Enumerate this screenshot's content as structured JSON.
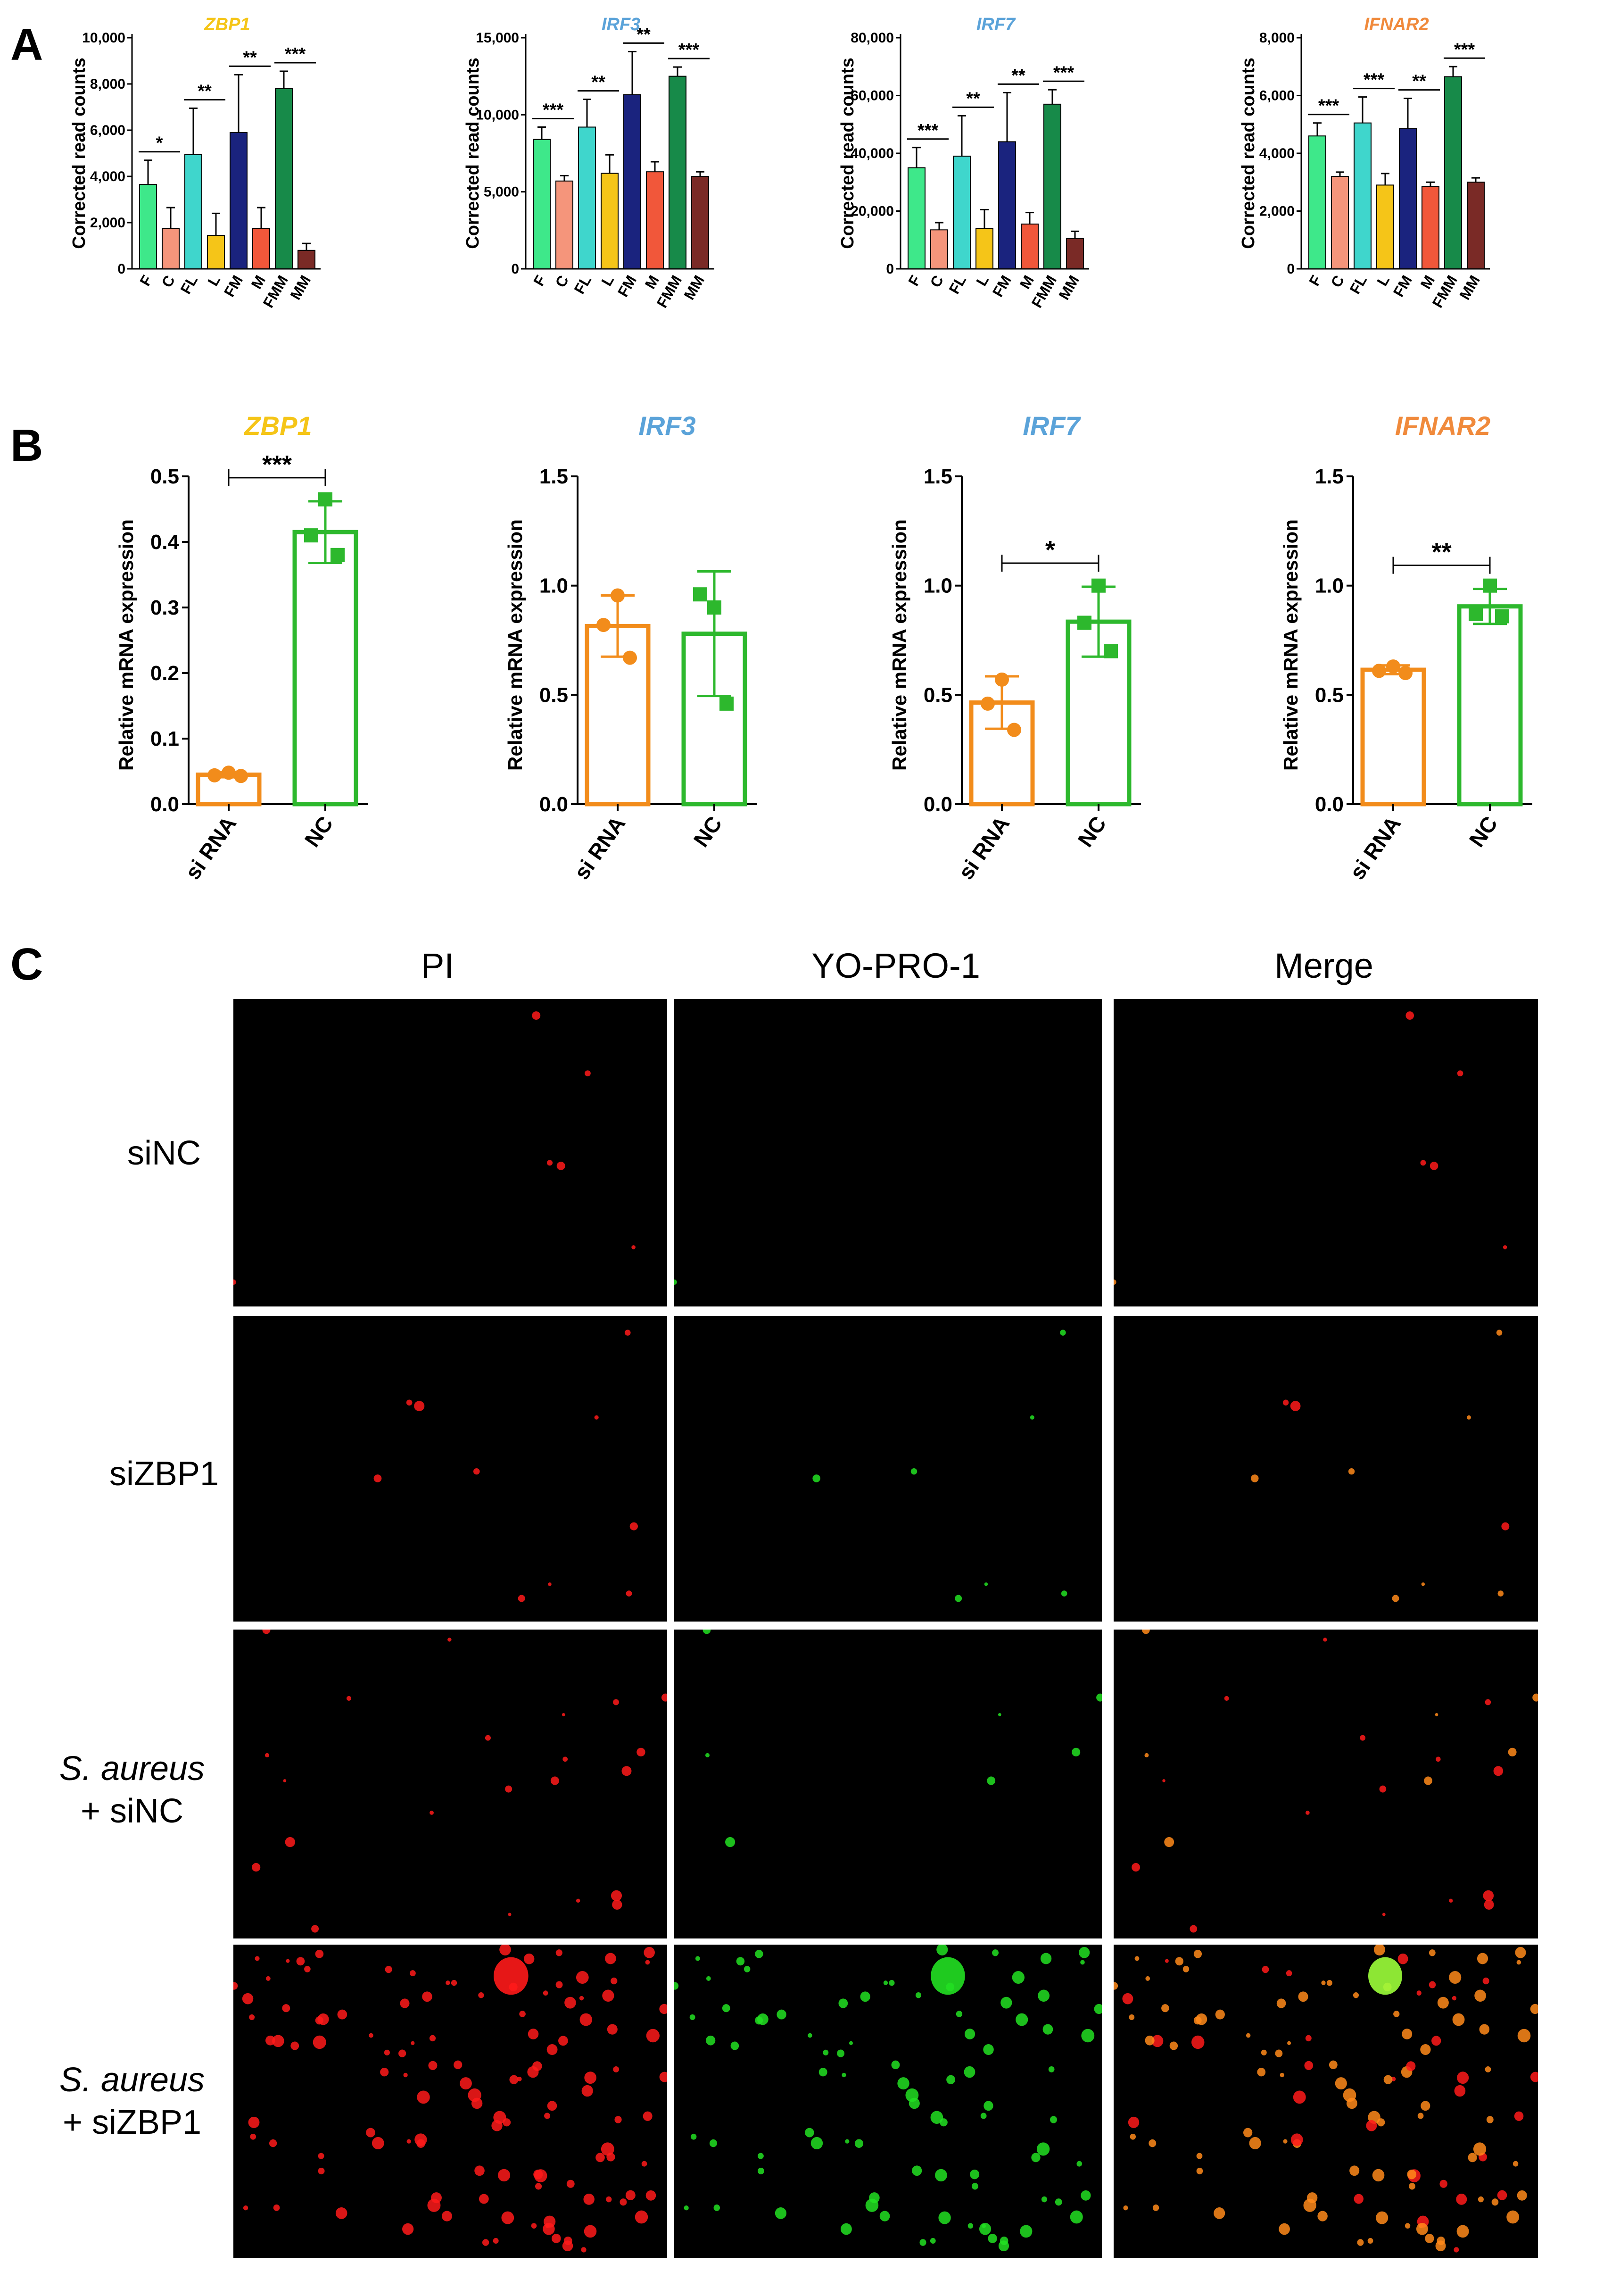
{
  "panel_letters": [
    "A",
    "B",
    "C"
  ],
  "chart_data": [
    {
      "id": "A1",
      "type": "bar",
      "title": "ZBP1",
      "title_color": "#f5c518",
      "ylabel": "Corrected read counts",
      "ylim": [
        0,
        10000
      ],
      "yticks": [
        0,
        2000,
        4000,
        6000,
        8000,
        10000
      ],
      "ytick_labels": [
        "0",
        "2,000",
        "4,000",
        "6,000",
        "8,000",
        "10,000"
      ],
      "categories": [
        "F",
        "C",
        "FL",
        "L",
        "FM",
        "M",
        "FMM",
        "MM"
      ],
      "colors": [
        "#3ee88a",
        "#f5957b",
        "#3fd6cc",
        "#f5c518",
        "#1a237e",
        "#f1573a",
        "#178a49",
        "#7a2a26"
      ],
      "values": [
        3650,
        1750,
        4950,
        1450,
        5900,
        1750,
        7800,
        800
      ],
      "errors": [
        1050,
        900,
        2000,
        950,
        2500,
        900,
        750,
        300
      ],
      "significance": [
        {
          "pair": [
            0,
            1
          ],
          "label": "*"
        },
        {
          "pair": [
            2,
            3
          ],
          "label": "**"
        },
        {
          "pair": [
            4,
            5
          ],
          "label": "**"
        },
        {
          "pair": [
            6,
            7
          ],
          "label": "***"
        }
      ]
    },
    {
      "id": "A2",
      "type": "bar",
      "title": "IRF3",
      "title_color": "#5ba3d9",
      "ylabel": "Corrected read counts",
      "ylim": [
        0,
        15000
      ],
      "yticks": [
        0,
        5000,
        10000,
        15000
      ],
      "ytick_labels": [
        "0",
        "5,000",
        "10,000",
        "15,000"
      ],
      "categories": [
        "F",
        "C",
        "FL",
        "L",
        "FM",
        "M",
        "FMM",
        "MM"
      ],
      "colors": [
        "#3ee88a",
        "#f5957b",
        "#3fd6cc",
        "#f5c518",
        "#1a237e",
        "#f1573a",
        "#178a49",
        "#7a2a26"
      ],
      "values": [
        8400,
        5700,
        9200,
        6200,
        11300,
        6300,
        12500,
        6000
      ],
      "errors": [
        800,
        350,
        1800,
        1200,
        2800,
        650,
        600,
        300
      ],
      "significance": [
        {
          "pair": [
            0,
            1
          ],
          "label": "***"
        },
        {
          "pair": [
            2,
            3
          ],
          "label": "**"
        },
        {
          "pair": [
            4,
            5
          ],
          "label": "**"
        },
        {
          "pair": [
            6,
            7
          ],
          "label": "***"
        }
      ]
    },
    {
      "id": "A3",
      "type": "bar",
      "title": "IRF7",
      "title_color": "#5ba3d9",
      "ylabel": "Corrected read counts",
      "ylim": [
        0,
        80000
      ],
      "yticks": [
        0,
        20000,
        40000,
        60000,
        80000
      ],
      "ytick_labels": [
        "0",
        "20,000",
        "40,000",
        "60,000",
        "80,000"
      ],
      "categories": [
        "F",
        "C",
        "FL",
        "L",
        "FM",
        "M",
        "FMM",
        "MM"
      ],
      "colors": [
        "#3ee88a",
        "#f5957b",
        "#3fd6cc",
        "#f5c518",
        "#1a237e",
        "#f1573a",
        "#178a49",
        "#7a2a26"
      ],
      "values": [
        35000,
        13500,
        39000,
        14000,
        44000,
        15500,
        57000,
        10500
      ],
      "errors": [
        7000,
        2500,
        14000,
        6500,
        17000,
        4000,
        5000,
        2500
      ],
      "significance": [
        {
          "pair": [
            0,
            1
          ],
          "label": "***"
        },
        {
          "pair": [
            2,
            3
          ],
          "label": "**"
        },
        {
          "pair": [
            4,
            5
          ],
          "label": "**"
        },
        {
          "pair": [
            6,
            7
          ],
          "label": "***"
        }
      ]
    },
    {
      "id": "A4",
      "type": "bar",
      "title": "IFNAR2",
      "title_color": "#f08a3c",
      "ylabel": "Corrected read counts",
      "ylim": [
        0,
        8000
      ],
      "yticks": [
        0,
        2000,
        4000,
        6000,
        8000
      ],
      "ytick_labels": [
        "0",
        "2,000",
        "4,000",
        "6,000",
        "8,000"
      ],
      "categories": [
        "F",
        "C",
        "FL",
        "L",
        "FM",
        "M",
        "FMM",
        "MM"
      ],
      "colors": [
        "#3ee88a",
        "#f5957b",
        "#3fd6cc",
        "#f5c518",
        "#1a237e",
        "#f1573a",
        "#178a49",
        "#7a2a26"
      ],
      "values": [
        4600,
        3200,
        5050,
        2900,
        4850,
        2850,
        6650,
        3000
      ],
      "errors": [
        450,
        150,
        900,
        400,
        1050,
        150,
        350,
        150
      ],
      "significance": [
        {
          "pair": [
            0,
            1
          ],
          "label": "***"
        },
        {
          "pair": [
            2,
            3
          ],
          "label": "***"
        },
        {
          "pair": [
            4,
            5
          ],
          "label": "**"
        },
        {
          "pair": [
            6,
            7
          ],
          "label": "***"
        }
      ]
    },
    {
      "id": "B1",
      "type": "bar",
      "title": "ZBP1",
      "title_color": "#f5c518",
      "ylabel": "Relative mRNA expression",
      "ylim": [
        0,
        0.5
      ],
      "yticks": [
        0,
        0.1,
        0.2,
        0.3,
        0.4,
        0.5
      ],
      "ytick_labels": [
        "0.0",
        "0.1",
        "0.2",
        "0.3",
        "0.4",
        "0.5"
      ],
      "categories": [
        "si RNA",
        "NC"
      ],
      "colors": [
        "#f28c1b",
        "#2db82d"
      ],
      "values": [
        0.045,
        0.415
      ],
      "errors": [
        0.004,
        0.047
      ],
      "points": [
        [
          0.048,
          0.044,
          0.043
        ],
        [
          0.465,
          0.41,
          0.38
        ]
      ],
      "markers": [
        "circle",
        "square"
      ],
      "significance": [
        {
          "pair": [
            0,
            1
          ],
          "label": "***"
        }
      ]
    },
    {
      "id": "B2",
      "type": "bar",
      "title": "IRF3",
      "title_color": "#5ba3d9",
      "ylabel": "Relative mRNA expression",
      "ylim": [
        0,
        1.5
      ],
      "yticks": [
        0,
        0.5,
        1.0,
        1.5
      ],
      "ytick_labels": [
        "0.0",
        "0.5",
        "1.0",
        "1.5"
      ],
      "categories": [
        "si RNA",
        "NC"
      ],
      "colors": [
        "#f28c1b",
        "#2db82d"
      ],
      "values": [
        0.815,
        0.78
      ],
      "errors": [
        0.14,
        0.285
      ],
      "points": [
        [
          0.955,
          0.82,
          0.67
        ],
        [
          0.9,
          0.96,
          0.46
        ]
      ],
      "markers": [
        "circle",
        "square"
      ],
      "significance": []
    },
    {
      "id": "B3",
      "type": "bar",
      "title": "IRF7",
      "title_color": "#5ba3d9",
      "ylabel": "Relative mRNA expression",
      "ylim": [
        0,
        1.5
      ],
      "yticks": [
        0,
        0.5,
        1.0,
        1.5
      ],
      "ytick_labels": [
        "0.0",
        "0.5",
        "1.0",
        "1.5"
      ],
      "categories": [
        "si RNA",
        "NC"
      ],
      "colors": [
        "#f28c1b",
        "#2db82d"
      ],
      "values": [
        0.465,
        0.835
      ],
      "errors": [
        0.12,
        0.16
      ],
      "points": [
        [
          0.57,
          0.46,
          0.34
        ],
        [
          1.0,
          0.83,
          0.7
        ]
      ],
      "markers": [
        "circle",
        "square"
      ],
      "significance": [
        {
          "pair": [
            0,
            1
          ],
          "label": "*"
        }
      ]
    },
    {
      "id": "B4",
      "type": "bar",
      "title": "IFNAR2",
      "title_color": "#f08a3c",
      "ylabel": "Relative mRNA expression",
      "ylim": [
        0,
        1.5
      ],
      "yticks": [
        0,
        0.5,
        1.0,
        1.5
      ],
      "ytick_labels": [
        "0.0",
        "0.5",
        "1.0",
        "1.5"
      ],
      "categories": [
        "si RNA",
        "NC"
      ],
      "colors": [
        "#f28c1b",
        "#2db82d"
      ],
      "values": [
        0.615,
        0.905
      ],
      "errors": [
        0.02,
        0.08
      ],
      "points": [
        [
          0.63,
          0.61,
          0.6
        ],
        [
          1.0,
          0.87,
          0.86
        ]
      ],
      "markers": [
        "circle",
        "square"
      ],
      "significance": [
        {
          "pair": [
            0,
            1
          ],
          "label": "**"
        }
      ]
    }
  ],
  "panel_c": {
    "columns": [
      "PI",
      "YO-PRO-1",
      "Merge"
    ],
    "rows": [
      {
        "italic": "",
        "text": "siNC",
        "line2": ""
      },
      {
        "italic": "",
        "text": "siZBP1",
        "line2": ""
      },
      {
        "italic": "S. aureus",
        "text": "",
        "line2": "+ siNC"
      },
      {
        "italic": "S. aureus",
        "text": "",
        "line2": "+ siZBP1"
      }
    ],
    "channel_colors": {
      "pi": "#ff1a1a",
      "yo_pro": "#22e022",
      "merge": "#ff8a1a"
    }
  }
}
